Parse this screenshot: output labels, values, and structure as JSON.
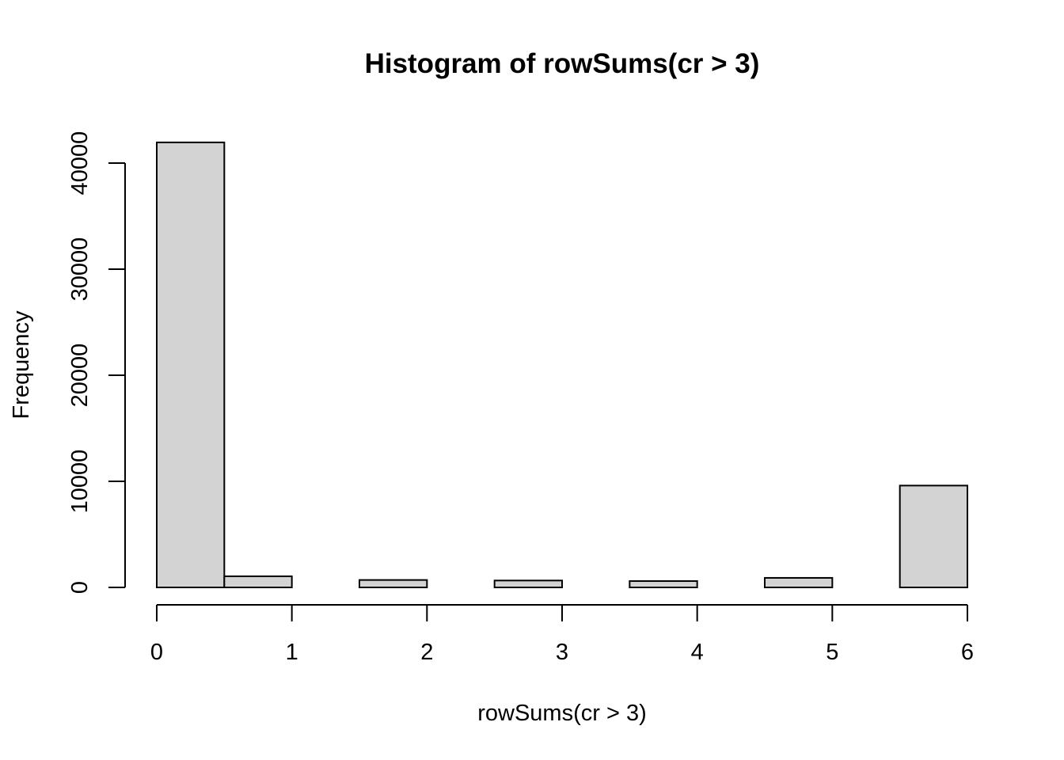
{
  "chart_data": {
    "type": "bar",
    "title": "Histogram of rowSums(cr > 3)",
    "xlabel": "rowSums(cr > 3)",
    "ylabel": "Frequency",
    "bins": [
      {
        "from": 0.0,
        "to": 0.5,
        "count": 41950
      },
      {
        "from": 0.5,
        "to": 1.0,
        "count": 1050
      },
      {
        "from": 1.0,
        "to": 1.5,
        "count": 0
      },
      {
        "from": 1.5,
        "to": 2.0,
        "count": 700
      },
      {
        "from": 2.0,
        "to": 2.5,
        "count": 0
      },
      {
        "from": 2.5,
        "to": 3.0,
        "count": 650
      },
      {
        "from": 3.0,
        "to": 3.5,
        "count": 0
      },
      {
        "from": 3.5,
        "to": 4.0,
        "count": 600
      },
      {
        "from": 4.0,
        "to": 4.5,
        "count": 0
      },
      {
        "from": 4.5,
        "to": 5.0,
        "count": 900
      },
      {
        "from": 5.0,
        "to": 5.5,
        "count": 0
      },
      {
        "from": 5.5,
        "to": 6.0,
        "count": 9600
      }
    ],
    "x_ticks": [
      "0",
      "1",
      "2",
      "3",
      "4",
      "5",
      "6"
    ],
    "y_ticks": [
      "0",
      "10000",
      "20000",
      "30000",
      "40000"
    ],
    "xlim": [
      0,
      6
    ],
    "ylim": [
      0,
      40000
    ],
    "grid": false,
    "bar_color": "#d3d3d3",
    "bar_border_color": "#000000"
  }
}
